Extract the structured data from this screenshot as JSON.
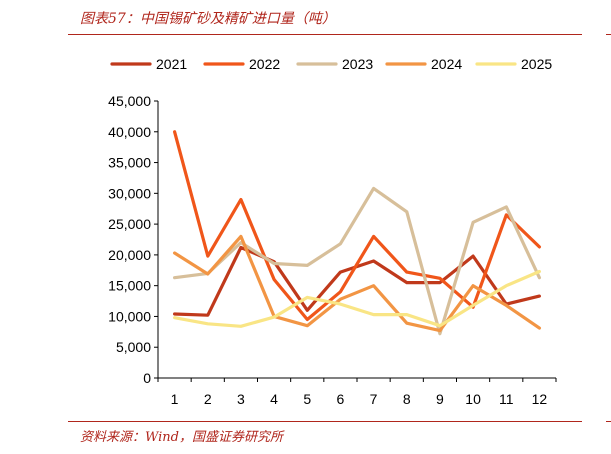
{
  "title": "图表57：中国锡矿砂及精矿进口量（吨）",
  "source": "资料来源：Wind，国盛证券研究所",
  "chart_data": {
    "type": "line",
    "categories": [
      "1",
      "2",
      "3",
      "4",
      "5",
      "6",
      "7",
      "8",
      "9",
      "10",
      "11",
      "12"
    ],
    "ylim": [
      0,
      45000
    ],
    "yticks": [
      "0",
      "5,000",
      "10,000",
      "15,000",
      "20,000",
      "25,000",
      "30,000",
      "35,000",
      "40,000",
      "45,000"
    ],
    "legend_position": "top",
    "grid": false,
    "series": [
      {
        "name": "2021",
        "color": "#c0391b",
        "values": [
          10400,
          10200,
          21200,
          18900,
          11000,
          17200,
          19000,
          15500,
          15500,
          19800,
          12000,
          13300
        ]
      },
      {
        "name": "2022",
        "color": "#f0561a",
        "values": [
          40000,
          19800,
          29000,
          16000,
          9500,
          14000,
          23000,
          17200,
          16200,
          11500,
          26500,
          21300
        ]
      },
      {
        "name": "2023",
        "color": "#d7bf9a",
        "values": [
          16300,
          17000,
          22000,
          18600,
          18300,
          21800,
          30800,
          27000,
          7200,
          25300,
          27800,
          16300
        ]
      },
      {
        "name": "2024",
        "color": "#f29544",
        "values": [
          20300,
          16900,
          23000,
          10000,
          8500,
          12800,
          15000,
          8900,
          7700,
          15000,
          11800,
          8100
        ]
      },
      {
        "name": "2025",
        "color": "#f9e585",
        "values": [
          9800,
          8800,
          8400,
          9900,
          13100,
          12000,
          10300,
          10300,
          8500,
          11800,
          15000,
          17300
        ]
      }
    ]
  }
}
